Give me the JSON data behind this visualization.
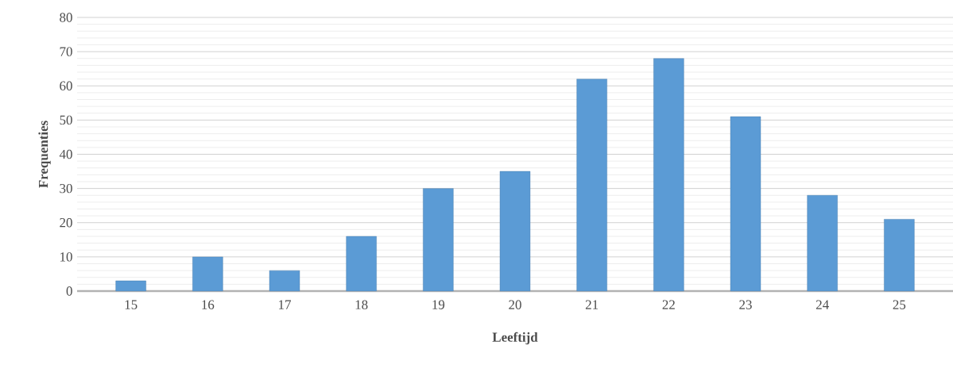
{
  "chart_data": {
    "type": "bar",
    "xlabel": "Leeftijd",
    "ylabel": "Frequenties",
    "categories": [
      "15",
      "16",
      "17",
      "18",
      "19",
      "20",
      "21",
      "22",
      "23",
      "24",
      "25"
    ],
    "values": [
      3,
      10,
      6,
      16,
      30,
      35,
      62,
      68,
      51,
      28,
      21
    ],
    "color": "#5b9bd5",
    "ylim": [
      0,
      80
    ],
    "yticks": [
      0,
      {
        "value": 2,
        "label": null
      },
      {
        "value": 4,
        "label": null
      },
      {
        "value": 6,
        "label": null
      },
      {
        "value": 8,
        "label": null
      },
      10,
      {
        "value": 12,
        "label": null
      },
      {
        "value": 14,
        "label": null
      },
      {
        "value": 16,
        "label": null
      },
      {
        "value": 18,
        "label": null
      },
      20,
      {
        "value": 22,
        "label": null
      },
      {
        "value": 24,
        "label": null
      },
      {
        "value": 26,
        "label": null
      },
      {
        "value": 28,
        "label": null
      },
      30,
      {
        "value": 32,
        "label": null
      },
      {
        "value": 34,
        "label": null
      },
      {
        "value": 36,
        "label": null
      },
      {
        "value": 38,
        "label": null
      },
      40,
      {
        "value": 42,
        "label": null
      },
      {
        "value": 44,
        "label": null
      },
      {
        "value": 46,
        "label": null
      },
      {
        "value": 48,
        "label": null
      },
      50,
      {
        "value": 52,
        "label": null
      },
      {
        "value": 54,
        "label": null
      },
      {
        "value": 56,
        "label": null
      },
      {
        "value": 58,
        "label": null
      },
      60,
      {
        "value": 62,
        "label": null
      },
      {
        "value": 64,
        "label": null
      },
      {
        "value": 66,
        "label": null
      },
      {
        "value": 68,
        "label": null
      },
      70,
      {
        "value": 72,
        "label": null
      },
      {
        "value": 74,
        "label": null
      },
      {
        "value": 76,
        "label": null
      },
      {
        "value": 78,
        "label": null
      },
      80
    ],
    "grid": "y"
  }
}
